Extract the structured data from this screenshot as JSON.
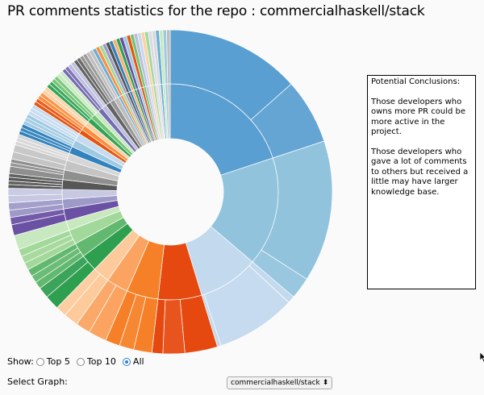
{
  "title": "PR comments statistics for the repo : commercialhaskell/stack",
  "conclusions": {
    "heading": "Potential Conclusions:",
    "paragraph_1": "Those developers who owns more PR could be more active in the project.",
    "paragraph_2": "Those developers who gave a lot of comments to others but received a little may have larger knowledge base."
  },
  "show": {
    "label": "Show:",
    "options": [
      "Top 5",
      "Top 10",
      "All"
    ],
    "selected": "All"
  },
  "select_graph": {
    "label": "Select Graph:",
    "value": "commercialhaskell/stack",
    "arrow": "⬍"
  },
  "chart_data": {
    "type": "sunburst",
    "title": "PR comments statistics for the repo : commercialhaskell/stack",
    "total_angle": 360,
    "developers": [
      {
        "value": 55,
        "color": "#5a9fd1",
        "children": [
          37,
          18
        ]
      },
      {
        "value": 45,
        "color": "#92c3dd",
        "children": [
          39,
          6
        ]
      },
      {
        "value": 25,
        "color": "#c2d9ee",
        "children": [
          2,
          22,
          1
        ]
      },
      {
        "value": 18,
        "color": "#e6490f",
        "children": [
          9,
          6,
          3
        ]
      },
      {
        "value": 13,
        "color": "#f58027",
        "children": [
          5,
          4,
          4
        ]
      },
      {
        "value": 9,
        "color": "#fba462",
        "children": [
          5,
          4
        ]
      },
      {
        "value": 7,
        "color": "#fdcb9b",
        "children": [
          4,
          3
        ]
      },
      {
        "value": 7,
        "color": "#2e9e4f",
        "children": [
          4,
          3
        ]
      },
      {
        "value": 6,
        "color": "#62b86e",
        "children": [
          2,
          2,
          2
        ]
      },
      {
        "value": 6,
        "color": "#a2d89a",
        "children": [
          2,
          2,
          2
        ]
      },
      {
        "value": 4,
        "color": "#c8e9c0",
        "children": [
          4
        ]
      },
      {
        "value": 5,
        "color": "#6a51a3",
        "children": [
          3,
          2
        ]
      },
      {
        "value": 4,
        "color": "#9e9ac8",
        "children": [
          2,
          2
        ]
      },
      {
        "value": 4,
        "color": "#c7c8e2",
        "children": [
          2,
          2
        ]
      },
      {
        "value": 4,
        "color": "#575757",
        "children": [
          1,
          1,
          1,
          1
        ]
      },
      {
        "value": 4,
        "color": "#8f8f8f",
        "children": [
          2,
          1,
          1
        ]
      },
      {
        "value": 4,
        "color": "#c4c4c4",
        "children": [
          2,
          2
        ]
      },
      {
        "value": 3,
        "color": "#d6d6d6",
        "children": [
          1,
          1,
          1
        ]
      },
      {
        "value": 3,
        "color": "#3182bd",
        "children": [
          1,
          1,
          1
        ]
      },
      {
        "value": 3,
        "color": "#9ecae1",
        "children": [
          1,
          1,
          1
        ]
      },
      {
        "value": 3,
        "color": "#c6dbef",
        "children": [
          1,
          1,
          1
        ]
      },
      {
        "value": 2,
        "color": "#e6550d",
        "children": [
          1,
          1
        ]
      },
      {
        "value": 2,
        "color": "#fd8d3c",
        "children": [
          1,
          1
        ]
      },
      {
        "value": 2,
        "color": "#fdd0a2",
        "children": [
          1,
          1
        ]
      },
      {
        "value": 2,
        "color": "#31a354",
        "children": [
          1,
          1
        ]
      },
      {
        "value": 2,
        "color": "#74c476",
        "children": [
          1,
          1
        ]
      },
      {
        "value": 2,
        "color": "#c7e9c0",
        "children": [
          1,
          1
        ]
      },
      {
        "value": 2,
        "color": "#756bb1",
        "children": [
          1,
          1
        ]
      },
      {
        "value": 2,
        "color": "#bcbddc",
        "children": [
          1,
          1
        ]
      },
      {
        "value": 2,
        "color": "#636363",
        "children": [
          1,
          1
        ]
      },
      {
        "value": 2,
        "color": "#969696",
        "children": [
          1,
          1
        ]
      },
      {
        "value": 2,
        "color": "#bdbdbd",
        "children": [
          1,
          1
        ]
      },
      {
        "value": 1,
        "color": "#6baed6",
        "children": [
          1
        ]
      },
      {
        "value": 1,
        "color": "#fd8d3c",
        "children": [
          1
        ]
      },
      {
        "value": 1,
        "color": "#a1d99b",
        "children": [
          1
        ]
      },
      {
        "value": 1,
        "color": "#9e9ac8",
        "children": [
          1
        ]
      },
      {
        "value": 1,
        "color": "#525252",
        "children": [
          1
        ]
      },
      {
        "value": 1,
        "color": "#3182bd",
        "children": [
          1
        ]
      },
      {
        "value": 1,
        "color": "#fdae6b",
        "children": [
          1
        ]
      },
      {
        "value": 1,
        "color": "#31a354",
        "children": [
          1
        ]
      },
      {
        "value": 1,
        "color": "#6a51a3",
        "children": [
          1
        ]
      },
      {
        "value": 1,
        "color": "#9ecae1",
        "children": [
          1
        ]
      },
      {
        "value": 1,
        "color": "#e6550d",
        "children": [
          1
        ]
      },
      {
        "value": 1,
        "color": "#74c476",
        "children": [
          1
        ]
      },
      {
        "value": 1,
        "color": "#bcbddc",
        "children": [
          1
        ]
      },
      {
        "value": 1,
        "color": "#c6dbef",
        "children": [
          1
        ]
      },
      {
        "value": 1,
        "color": "#fdd0a2",
        "children": [
          1
        ]
      },
      {
        "value": 1,
        "color": "#a1d99b",
        "children": [
          1
        ]
      },
      {
        "value": 1,
        "color": "#dadaeb",
        "children": [
          1
        ]
      },
      {
        "value": 1,
        "color": "#d9d9d9",
        "children": [
          1
        ]
      },
      {
        "value": 1,
        "color": "#6baed6",
        "children": [
          1
        ]
      },
      {
        "value": 1,
        "color": "#c7e9c0",
        "children": [
          1
        ]
      },
      {
        "value": 1,
        "color": "#9ecae1",
        "children": [
          1
        ]
      },
      {
        "value": 1,
        "color": "#bdbdbd",
        "children": [
          1
        ]
      }
    ]
  }
}
